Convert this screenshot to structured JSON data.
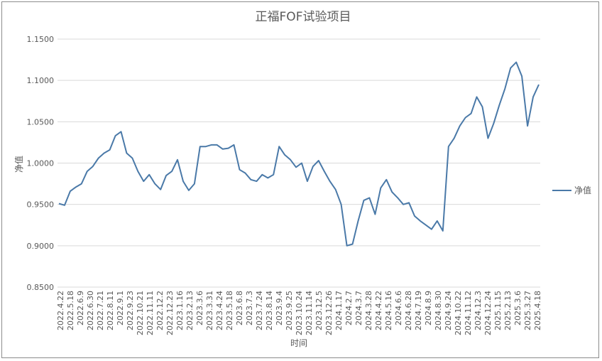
{
  "chart_data": {
    "type": "line",
    "title": "正福FOF试验项目",
    "xlabel": "时间",
    "ylabel": "净值",
    "ylim": [
      0.85,
      1.15
    ],
    "y_ticks": [
      "0.8500",
      "0.9000",
      "0.9500",
      "1.0000",
      "1.0500",
      "1.1000",
      "1.1500"
    ],
    "grid": true,
    "legend_position": "right",
    "x_tick_labels": [
      "2022.4.22",
      "2022.5.18",
      "2022.6.9",
      "2022.6.30",
      "2022.7.21",
      "2022.8.11",
      "2022.9.1",
      "2022.9.23",
      "2022.10.21",
      "2022.11.11",
      "2022.12.2",
      "2022.12.23",
      "2023.1.16",
      "2023.2.13",
      "2023.3.6",
      "2023.3.31",
      "2023.4.24",
      "2023.5.18",
      "2023.6.8",
      "2023.7.3",
      "2023.7.24",
      "2023.8.14",
      "2023.9.4",
      "2023.9.25",
      "2023.10.24",
      "2023.11.14",
      "2023.12.5",
      "2023.12.26",
      "2024.1.17",
      "2024.2.7",
      "2024.3.7",
      "2024.3.28",
      "2024.4.22",
      "2024.5.16",
      "2024.6.6",
      "2024.6.28",
      "2024.7.19",
      "2024.8.9",
      "2024.8.30",
      "2024.9.24",
      "2024.10.22",
      "2024.11.12",
      "2024.12.3",
      "2024.12.24",
      "2025.1.15",
      "2025.2.13",
      "2025.3.6",
      "2025.3.27",
      "2025.4.18"
    ],
    "series": [
      {
        "name": "净值",
        "color": "#4a79a8",
        "values": [
          0.951,
          0.949,
          0.966,
          0.971,
          0.975,
          0.99,
          0.996,
          1.006,
          1.012,
          1.016,
          1.033,
          1.038,
          1.012,
          1.006,
          0.99,
          0.978,
          0.986,
          0.975,
          0.968,
          0.985,
          0.99,
          1.004,
          0.978,
          0.967,
          0.975,
          1.02,
          1.02,
          1.022,
          1.022,
          1.017,
          1.018,
          1.022,
          0.992,
          0.988,
          0.98,
          0.978,
          0.986,
          0.982,
          0.986,
          1.02,
          1.01,
          1.004,
          0.995,
          1.0,
          0.978,
          0.996,
          1.003,
          0.99,
          0.978,
          0.968,
          0.95,
          0.9,
          0.902,
          0.93,
          0.955,
          0.958,
          0.938,
          0.97,
          0.98,
          0.965,
          0.958,
          0.95,
          0.952,
          0.936,
          0.93,
          0.925,
          0.92,
          0.93,
          0.918,
          1.02,
          1.03,
          1.045,
          1.055,
          1.06,
          1.08,
          1.068,
          1.03,
          1.048,
          1.07,
          1.09,
          1.115,
          1.122,
          1.105,
          1.045,
          1.08,
          1.095
        ]
      }
    ]
  }
}
